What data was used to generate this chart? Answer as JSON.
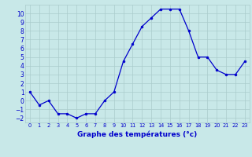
{
  "hours": [
    0,
    1,
    2,
    3,
    4,
    5,
    6,
    7,
    8,
    9,
    10,
    11,
    12,
    13,
    14,
    15,
    16,
    17,
    18,
    19,
    20,
    21,
    22,
    23
  ],
  "temperatures": [
    1.0,
    -0.5,
    0.0,
    -1.5,
    -1.5,
    -2.0,
    -1.5,
    -1.5,
    0.0,
    1.0,
    4.5,
    6.5,
    8.5,
    9.5,
    10.5,
    10.5,
    10.5,
    8.0,
    5.0,
    5.0,
    3.5,
    3.0,
    3.0,
    4.5
  ],
  "xlabel": "Graphe des températures (°c)",
  "ylim": [
    -2.5,
    11
  ],
  "xlim": [
    -0.5,
    23.5
  ],
  "line_color": "#0000cc",
  "marker_color": "#0000cc",
  "bg_color": "#c8e8e8",
  "grid_color": "#aacccc",
  "tick_label_color": "#0000cc",
  "xlabel_color": "#0000cc",
  "yticks": [
    -2,
    -1,
    0,
    1,
    2,
    3,
    4,
    5,
    6,
    7,
    8,
    9,
    10
  ],
  "xtick_labels": [
    "0",
    "1",
    "2",
    "3",
    "4",
    "5",
    "6",
    "7",
    "8",
    "9",
    "10",
    "11",
    "12",
    "13",
    "14",
    "15",
    "16",
    "17",
    "18",
    "19",
    "20",
    "21",
    "22",
    "23"
  ]
}
